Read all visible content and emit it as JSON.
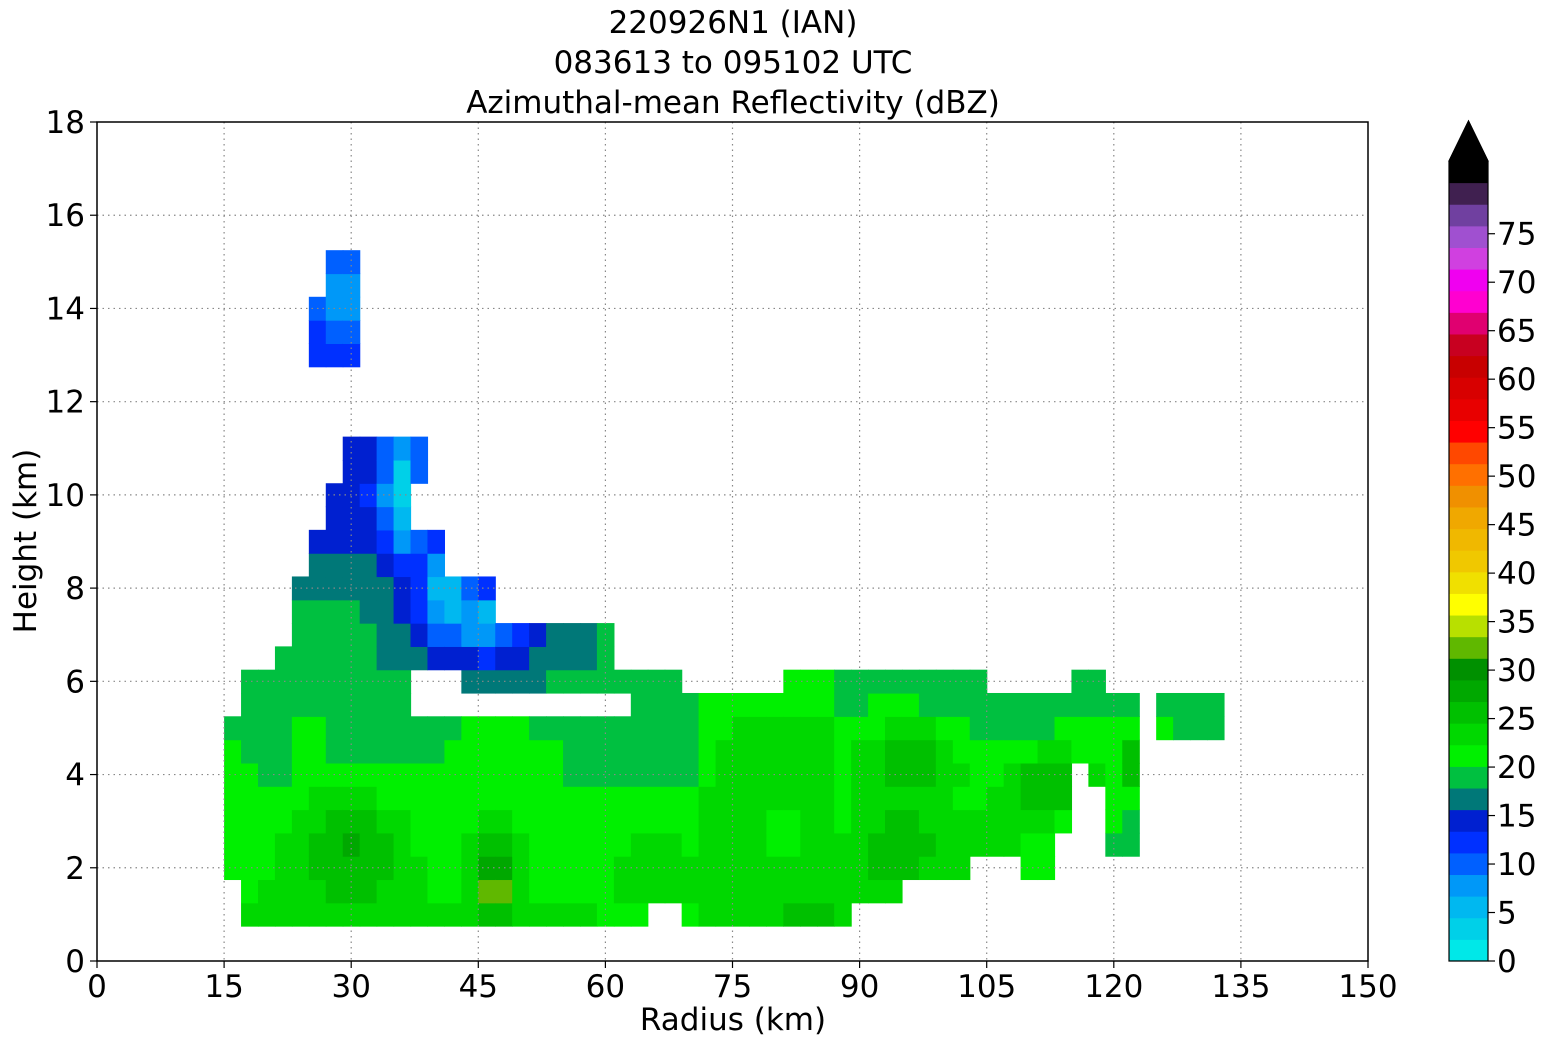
{
  "chart_data": {
    "type": "heatmap",
    "title": [
      "220926N1 (IAN)",
      "083613 to 095102 UTC",
      "Azimuthal-mean Reflectivity (dBZ)"
    ],
    "xlabel": "Radius (km)",
    "ylabel": "Height (km)",
    "xlim": [
      0,
      150
    ],
    "ylim": [
      0,
      18
    ],
    "xticks": [
      0,
      15,
      30,
      45,
      60,
      75,
      90,
      105,
      120,
      135,
      150
    ],
    "yticks": [
      0,
      2,
      4,
      6,
      8,
      10,
      12,
      14,
      16,
      18
    ],
    "grid": true,
    "colorbar": {
      "min": 0,
      "max": 80,
      "step": 2.5,
      "extend": "max",
      "ticks": [
        0,
        5,
        10,
        15,
        20,
        25,
        30,
        35,
        40,
        45,
        50,
        55,
        60,
        65,
        70,
        75
      ],
      "colors": [
        "#00e8e8",
        "#00d0e8",
        "#00b8f0",
        "#0098f8",
        "#0060ff",
        "#0030ff",
        "#0020d0",
        "#007878",
        "#00c040",
        "#00f000",
        "#00d800",
        "#00c000",
        "#00a800",
        "#009000",
        "#60b800",
        "#b8e000",
        "#ffff00",
        "#f0e000",
        "#f0c800",
        "#f0b800",
        "#f0a800",
        "#f09000",
        "#ff7000",
        "#ff4800",
        "#ff0000",
        "#e80000",
        "#d80000",
        "#c80000",
        "#c80020",
        "#e00070",
        "#ff00d0",
        "#f000f0",
        "#d040e0",
        "#a050d0",
        "#7040a0",
        "#402050"
      ],
      "over_color": "#000000"
    },
    "x": [
      16,
      18,
      20,
      22,
      24,
      26,
      28,
      30,
      32,
      34,
      36,
      38,
      40,
      42,
      44,
      46,
      48,
      50,
      52,
      54,
      56,
      58,
      60,
      62,
      64,
      66,
      68,
      70,
      72,
      74,
      76,
      78,
      80,
      82,
      84,
      86,
      88,
      90,
      92,
      94,
      96,
      98,
      100,
      102,
      104,
      106,
      108,
      110,
      112,
      114,
      116,
      118,
      120,
      122,
      124,
      126,
      128,
      130,
      132
    ],
    "y": [
      1,
      1.5,
      2,
      2.5,
      3,
      3.5,
      4,
      4.5,
      5,
      5.5,
      6,
      6.5,
      7,
      7.5,
      8,
      8.5,
      9,
      9.5,
      10,
      10.5,
      11,
      11.5,
      12,
      12.5,
      13,
      13.5,
      14,
      14.5,
      15
    ],
    "blobs": [
      {
        "x": 47,
        "y": 1.5,
        "sx": 2.2,
        "sy": 0.5,
        "a": 10
      },
      {
        "x": 47,
        "y": 2.4,
        "sx": 3.5,
        "sy": 1.0,
        "a": 7
      },
      {
        "x": 30,
        "y": 2.5,
        "sx": 6.5,
        "sy": 1.3,
        "a": 5
      },
      {
        "x": 25,
        "y": 4.8,
        "sx": 1.8,
        "sy": 0.6,
        "a": 6
      },
      {
        "x": 97,
        "y": 4.5,
        "sx": 6.5,
        "sy": 0.9,
        "a": 7
      },
      {
        "x": 112,
        "y": 3.9,
        "sx": 5.5,
        "sy": 0.8,
        "a": 7
      },
      {
        "x": 122,
        "y": 4.3,
        "sx": 1.5,
        "sy": 0.6,
        "a": 6
      },
      {
        "x": 93,
        "y": 2.5,
        "sx": 7,
        "sy": 1.2,
        "a": 5
      },
      {
        "x": 77,
        "y": 4.5,
        "sx": 4,
        "sy": 1.0,
        "a": 3
      },
      {
        "x": 36,
        "y": 10.0,
        "sx": 2.5,
        "sy": 1.5,
        "a": -13
      },
      {
        "x": 41,
        "y": 8.0,
        "sx": 2.8,
        "sy": 1.0,
        "a": -12
      },
      {
        "x": 46,
        "y": 7.3,
        "sx": 2.8,
        "sy": 0.6,
        "a": -8
      },
      {
        "x": 45,
        "y": 7.0,
        "sx": 9,
        "sy": 1.0,
        "a": -4
      },
      {
        "x": 29,
        "y": 14.0,
        "sx": 1.5,
        "sy": 1.0,
        "a": -5
      }
    ],
    "mask_boxes": [
      [
        18,
        1,
        64,
        1.9
      ],
      [
        16,
        2,
        64,
        5.4
      ],
      [
        18,
        5.5,
        37,
        6.4
      ],
      [
        22,
        6.5,
        50,
        6.9
      ],
      [
        24,
        7,
        46,
        8.4
      ],
      [
        26,
        8.5,
        40,
        9.4
      ],
      [
        28,
        9.5,
        36,
        10.4
      ],
      [
        30,
        10.5,
        38,
        11
      ],
      [
        38,
        7,
        60,
        7.4
      ],
      [
        44,
        6,
        60,
        6.9
      ],
      [
        60,
        6,
        68,
        6.4
      ],
      [
        70,
        1,
        88,
        5.9
      ],
      [
        64,
        1.5,
        70,
        5.9
      ],
      [
        88,
        1.5,
        94,
        6.4
      ],
      [
        94,
        2,
        102,
        6.4
      ],
      [
        82,
        6,
        104,
        6.4
      ],
      [
        102,
        2.5,
        110,
        5.9
      ],
      [
        110,
        2,
        112,
        5.9
      ],
      [
        112,
        3,
        114,
        5.9
      ],
      [
        114,
        4.5,
        120,
        5.9
      ],
      [
        120,
        2.5,
        122,
        5.9
      ],
      [
        118,
        4,
        122,
        4.4
      ],
      [
        115,
        6,
        118,
        6.4
      ],
      [
        126,
        5,
        132,
        5.9
      ],
      [
        26,
        13,
        30,
        14
      ],
      [
        28,
        14,
        30,
        15
      ]
    ]
  }
}
